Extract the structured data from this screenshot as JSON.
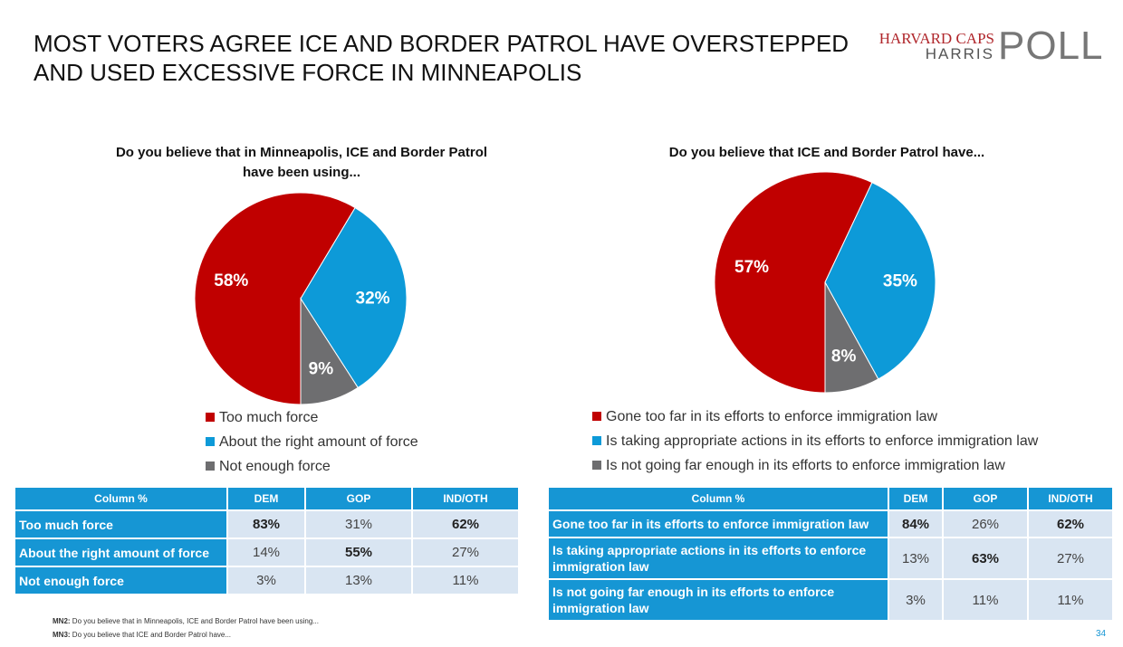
{
  "title": [
    "MOST VOTERS AGREE ICE AND BORDER PATROL HAVE OVERSTEPPED",
    "AND USED EXCESSIVE FORCE IN MINNEAPOLIS"
  ],
  "logo": {
    "line1": "HARVARD CAPS",
    "line2": "HARRIS",
    "mark": "POLL"
  },
  "chart_data": [
    {
      "type": "pie",
      "title": [
        "Do you believe that in Minneapolis, ICE and Border Patrol",
        "have been using..."
      ],
      "categories": [
        "Too much force",
        "About the right amount of force",
        "Not enough force"
      ],
      "values": [
        58,
        32,
        9
      ],
      "value_labels": [
        "58%",
        "32%",
        "9%"
      ],
      "colors": [
        "#c00000",
        "#0d9ad8",
        "#6e6e70"
      ]
    },
    {
      "type": "pie",
      "title": [
        "Do you believe that ICE and Border Patrol have..."
      ],
      "categories": [
        "Gone too far in its efforts to enforce immigration law",
        "Is taking appropriate actions in its efforts to enforce immigration law",
        "Is not going far enough in its efforts to enforce immigration law"
      ],
      "values": [
        57,
        35,
        8
      ],
      "value_labels": [
        "57%",
        "35%",
        "8%"
      ],
      "colors": [
        "#c00000",
        "#0d9ad8",
        "#6e6e70"
      ]
    }
  ],
  "tables": [
    {
      "header": [
        "Column %",
        "DEM",
        "GOP",
        "IND/OTH"
      ],
      "rows": [
        [
          "Too much force",
          "83%",
          "31%",
          "62%"
        ],
        [
          "About the right amount of force",
          "14%",
          "55%",
          "27%"
        ],
        [
          "Not enough force",
          "3%",
          "13%",
          "11%"
        ]
      ]
    },
    {
      "header": [
        "Column %",
        "DEM",
        "GOP",
        "IND/OTH"
      ],
      "rows": [
        [
          "Gone too far in its efforts to enforce immigration law",
          "84%",
          "26%",
          "62%"
        ],
        [
          "Is taking appropriate actions in its efforts to enforce immigration law",
          "13%",
          "63%",
          "27%"
        ],
        [
          "Is not going far enough in its efforts to enforce immigration law",
          "3%",
          "11%",
          "11%"
        ]
      ]
    }
  ],
  "notes": [
    {
      "code": "MN2:",
      "text": "Do you believe that in Minneapolis, ICE and Border Patrol have been using..."
    },
    {
      "code": "MN3:",
      "text": "Do you believe that ICE and Border Patrol have..."
    }
  ],
  "page": "34"
}
